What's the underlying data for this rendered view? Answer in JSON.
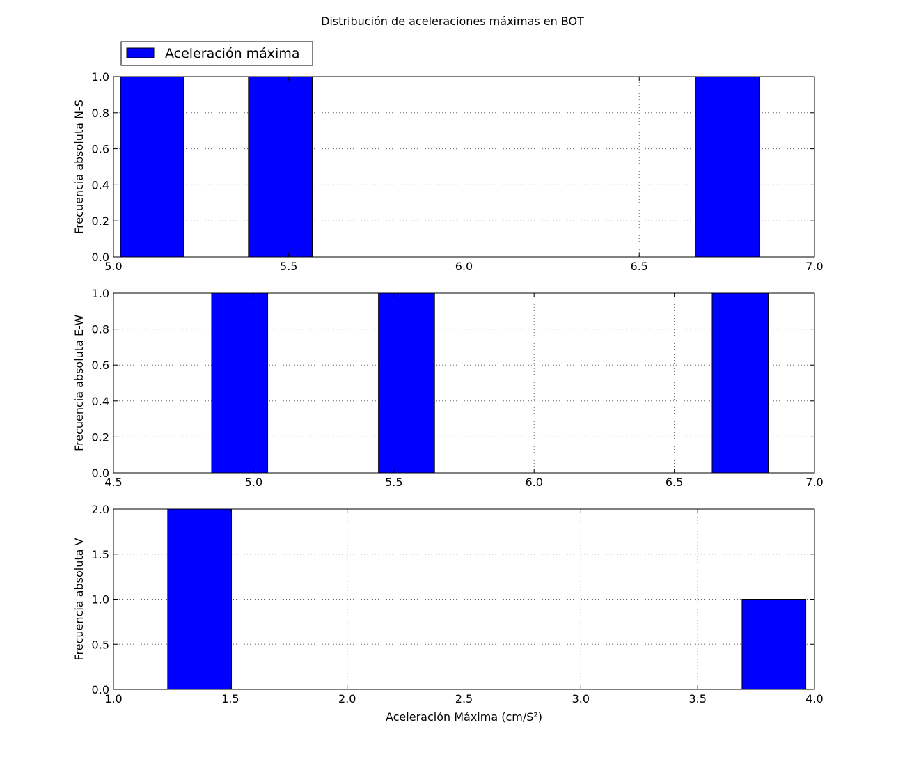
{
  "figure_title": "Distribución de aceleraciones máximas en BOT",
  "legend": {
    "label": "Aceleración máxima",
    "placement": "upper-left-above-first-axes"
  },
  "colors": {
    "bar_fill": "#0000ff",
    "bar_edge": "#000000",
    "grid": "#000000",
    "background": "#ffffff"
  },
  "chart_data": [
    {
      "type": "bar",
      "name": "ns",
      "title": "",
      "xlabel": "",
      "ylabel": "Frecuencia absoluta N-S",
      "xlim": [
        5.0,
        7.0
      ],
      "ylim": [
        0.0,
        1.0
      ],
      "xticks": [
        "5.0",
        "5.5",
        "6.0",
        "6.5",
        "7.0"
      ],
      "yticks": [
        "0.0",
        "0.2",
        "0.4",
        "0.6",
        "0.8",
        "1.0"
      ],
      "grid": true,
      "bars": [
        {
          "x0": 5.02,
          "x1": 5.2,
          "value": 1
        },
        {
          "x0": 5.385,
          "x1": 5.567,
          "value": 1
        },
        {
          "x0": 6.66,
          "x1": 6.842,
          "value": 1
        }
      ]
    },
    {
      "type": "bar",
      "name": "ew",
      "title": "",
      "xlabel": "",
      "ylabel": "Frecuencia absoluta E-W",
      "xlim": [
        4.5,
        7.0
      ],
      "ylim": [
        0.0,
        1.0
      ],
      "xticks": [
        "4.5",
        "5.0",
        "5.5",
        "6.0",
        "6.5",
        "7.0"
      ],
      "yticks": [
        "0.0",
        "0.2",
        "0.4",
        "0.6",
        "0.8",
        "1.0"
      ],
      "grid": true,
      "bars": [
        {
          "x0": 4.85,
          "x1": 5.05,
          "value": 1
        },
        {
          "x0": 5.445,
          "x1": 5.645,
          "value": 1
        },
        {
          "x0": 6.635,
          "x1": 6.835,
          "value": 1
        }
      ]
    },
    {
      "type": "bar",
      "name": "v",
      "title": "",
      "xlabel": "Aceleración Máxima (cm/S²)",
      "ylabel": "Frecuencia absoluta V",
      "xlim": [
        1.0,
        4.0
      ],
      "ylim": [
        0.0,
        2.0
      ],
      "xticks": [
        "1.0",
        "1.5",
        "2.0",
        "2.5",
        "3.0",
        "3.5",
        "4.0"
      ],
      "yticks": [
        "0.0",
        "0.5",
        "1.0",
        "1.5",
        "2.0"
      ],
      "grid": true,
      "bars": [
        {
          "x0": 1.232,
          "x1": 1.505,
          "value": 2
        },
        {
          "x0": 3.69,
          "x1": 3.963,
          "value": 1
        }
      ]
    }
  ]
}
